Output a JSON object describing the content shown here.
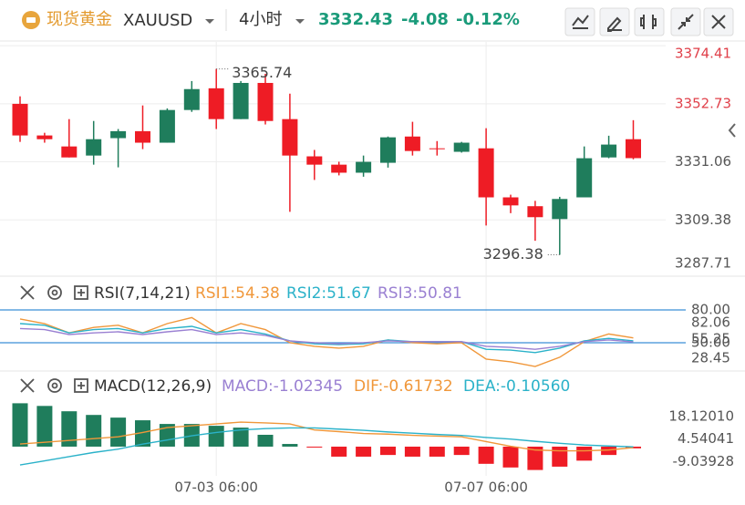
{
  "header": {
    "symbol_cn": "现货黄金",
    "symbol": "XAUUSD",
    "interval": "4小时",
    "price": 3332.43,
    "change": -4.08,
    "change_pct": "-0.12%"
  },
  "chart_data": [
    {
      "type": "candlestick",
      "categories": [
        null,
        null,
        null,
        null,
        null,
        null,
        null,
        null,
        "07-03 06:00",
        null,
        null,
        null,
        null,
        null,
        null,
        null,
        null,
        null,
        null,
        "07-07 06:00",
        null,
        null,
        null,
        null,
        null,
        null
      ],
      "open": [
        3352.7,
        3340.9,
        3336.8,
        3333.4,
        3339.9,
        3342.5,
        3338.2,
        3350.4,
        3358.5,
        3347.0,
        3360.5,
        3347.0,
        3333.1,
        3330.0,
        3327.0,
        3330.7,
        3340.5,
        3336.1,
        3334.8,
        3336.1,
        3317.8,
        3314.5,
        3309.7,
        3317.8,
        3332.7,
        3339.5
      ],
      "high": [
        3355.5,
        3341.9,
        3347.0,
        3346.3,
        3343.3,
        3352.1,
        3351.0,
        3361.2,
        3365.74,
        3361.2,
        3363.9,
        3356.5,
        3335.5,
        3331.1,
        3333.4,
        3340.5,
        3346.0,
        3338.8,
        3338.5,
        3343.6,
        3318.8,
        3316.5,
        3318.0,
        3336.8,
        3340.8,
        3346.6
      ],
      "low": [
        3338.5,
        3338.2,
        3332.7,
        3330.0,
        3329.0,
        3335.8,
        3338.2,
        3349.7,
        3343.3,
        3347.0,
        3345.0,
        3312.4,
        3324.3,
        3326.0,
        3325.5,
        3328.9,
        3333.4,
        3333.4,
        3334.5,
        3307.3,
        3311.9,
        3301.6,
        3296.38,
        3317.8,
        3332.4,
        3332.0
      ],
      "close": [
        3340.9,
        3339.5,
        3332.7,
        3339.5,
        3342.5,
        3338.2,
        3350.4,
        3358.2,
        3347.0,
        3360.5,
        3346.3,
        3333.4,
        3330.0,
        3327.0,
        3331.06,
        3340.2,
        3335.1,
        3335.8,
        3338.2,
        3317.8,
        3314.8,
        3310.4,
        3317.2,
        3332.4,
        3337.5,
        3332.43
      ],
      "up_color": "#1f7d5c",
      "down_color": "#ee1c25",
      "ylim": [
        3289.4,
        3375.8
      ],
      "yticks": [
        3374.41,
        3352.73,
        3331.06,
        3309.38,
        3287.71
      ],
      "grid": true
    },
    {
      "type": "line",
      "title": "RSI(7,14,21)",
      "series": [
        {
          "name": "RSI1:54.38",
          "color": "#f0973a",
          "values": [
            71.7,
            67.5,
            59,
            64,
            66,
            59,
            67.5,
            73,
            59,
            67.5,
            62,
            50,
            46.7,
            45,
            46.7,
            52.5,
            50,
            49,
            50,
            35,
            32.5,
            28.3,
            36.7,
            51,
            58,
            54.38
          ]
        },
        {
          "name": "RSI2:51.67",
          "color": "#2bb2c9",
          "values": [
            67.5,
            66,
            59,
            62,
            63,
            59,
            63,
            65,
            59,
            62,
            58,
            51.7,
            49,
            48.3,
            49,
            52.5,
            51,
            51,
            51,
            44,
            43.3,
            41,
            45,
            51.7,
            54,
            51.67
          ]
        },
        {
          "name": "RSI3:50.81",
          "color": "#9a80d2",
          "values": [
            63,
            62,
            57.5,
            59,
            60,
            57.5,
            60,
            62,
            57.5,
            59,
            56.7,
            51.7,
            50,
            49,
            50,
            51.7,
            51,
            51,
            51,
            46.7,
            45.8,
            44,
            46.7,
            51,
            52.5,
            50.81
          ]
        }
      ],
      "ylim": [
        25.8,
        109.2
      ],
      "yticks": [
        {
          "value": 80,
          "label": "80.00"
        },
        {
          "value": 50,
          "label": "50.00"
        }
      ],
      "badges": [
        82.06,
        55.25,
        28.45
      ],
      "line_color": "#3a8fd8"
    },
    {
      "type": "macd",
      "title": "MACD(12,26,9)",
      "series": [
        {
          "name": "MACD:-1.02345",
          "color": "#9a80d2",
          "values": [
            26,
            24.4,
            21.2,
            19,
            17.4,
            15.8,
            13.6,
            13.6,
            12.5,
            11.4,
            7.1,
            1.6,
            -0.5,
            -6,
            -6,
            -5,
            -6,
            -6,
            -5,
            -10.3,
            -12.5,
            -14,
            -12,
            -8.4,
            -5,
            -1.02345
          ]
        },
        {
          "name": "DIF:-0.61732",
          "color": "#f0973a",
          "values": [
            1.6,
            2.6,
            3.7,
            4.8,
            5.9,
            8.5,
            11.4,
            12.5,
            13.6,
            14.7,
            14.2,
            13.6,
            10,
            9,
            7.9,
            7.5,
            6.8,
            6.3,
            5.9,
            3,
            0.2,
            -2,
            -2.5,
            -2.5,
            -2,
            -0.61732
          ]
        },
        {
          "name": "DEA:-0.10560",
          "color": "#2bb2c9",
          "values": [
            -11,
            -8.5,
            -6,
            -3.5,
            -1.5,
            1.5,
            4,
            6.5,
            8.5,
            10,
            10.8,
            11.2,
            11.2,
            10.5,
            9.8,
            8.8,
            8.1,
            7.3,
            6.7,
            5.5,
            4.5,
            3.2,
            2,
            1,
            0.4,
            -0.1056
          ]
        }
      ],
      "up_color": "#1f7d5c",
      "down_color": "#ee1c25",
      "ylim": [
        -32.8,
        43.7
      ],
      "yticks": [
        {
          "value": 18.1201,
          "label": "18.12010"
        },
        4.54041,
        -9.03928
      ]
    }
  ]
}
